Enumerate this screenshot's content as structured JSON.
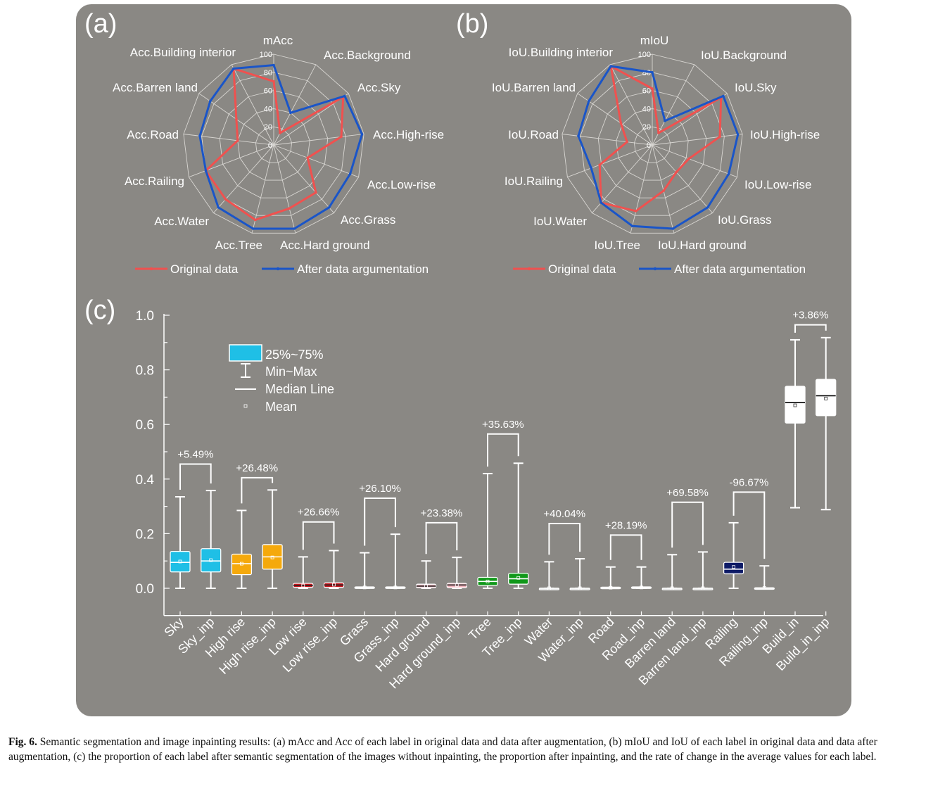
{
  "panel_labels": [
    "(a)",
    "(b)",
    "(c)"
  ],
  "chart_data": [
    {
      "type": "radar",
      "panel": "(a)",
      "title": "mAcc",
      "axes": [
        "mAcc",
        "Acc.Background",
        "Acc.Sky",
        "Acc.High-rise",
        "Acc.Low-rise",
        "Acc.Grass",
        "Acc.Hard ground",
        "Acc.Tree",
        "Acc.Water",
        "Acc.Railing",
        "Acc.Road",
        "Acc.Barren land",
        "Acc.Building interior"
      ],
      "radial_ticks": [
        "0",
        "20",
        "40",
        "60",
        "80",
        "100"
      ],
      "rmax": 100,
      "series": [
        {
          "name": "Original data",
          "color": "#f0514f",
          "values": [
            70,
            15,
            93,
            75,
            40,
            70,
            72,
            85,
            80,
            80,
            40,
            50,
            95
          ]
        },
        {
          "name": "After data argumentation",
          "color": "#1a55c8",
          "values": [
            88,
            40,
            95,
            98,
            90,
            92,
            95,
            95,
            92,
            80,
            82,
            85,
            95
          ]
        }
      ]
    },
    {
      "type": "radar",
      "panel": "(b)",
      "title": "mIoU",
      "axes": [
        "mIoU",
        "IoU.Background",
        "IoU.Sky",
        "IoU.High-rise",
        "IoU.Low-rise",
        "IoU.Grass",
        "IoU.Hard ground",
        "IoU.Tree",
        "IoU.Water",
        "IoU.Railing",
        "IoU.Road",
        "IoU.Barren land",
        "IoU.Building interior"
      ],
      "radial_ticks": [
        "0",
        "20",
        "40",
        "60",
        "80",
        "100"
      ],
      "rmax": 100,
      "series": [
        {
          "name": "Original data",
          "color": "#f0514f",
          "values": [
            62,
            15,
            92,
            75,
            43,
            40,
            52,
            75,
            85,
            62,
            28,
            42,
            98
          ]
        },
        {
          "name": "After data argumentation",
          "color": "#1a55c8",
          "values": [
            80,
            30,
            95,
            95,
            90,
            92,
            95,
            92,
            85,
            72,
            82,
            85,
            98
          ]
        }
      ]
    },
    {
      "type": "box",
      "panel": "(c)",
      "ylim": [
        -0.1,
        1.0
      ],
      "yticks": [
        "0.0",
        "0.2",
        "0.4",
        "0.6",
        "0.8",
        "1.0"
      ],
      "legend": {
        "box": "25%~75%",
        "whisker": "Min~Max",
        "median": "Median Line",
        "mean": "Mean"
      },
      "categories": [
        "Sky",
        "Sky_inp",
        "High rise",
        "High rise_inp",
        "Low rise",
        "Low rise_inp",
        "Grass",
        "Grass_inp",
        "Hard ground",
        "Hard ground_inp",
        "Tree",
        "Tree_inp",
        "Water",
        "Water_inp",
        "Road",
        "Road_inp",
        "Barren land",
        "Barren land_inp",
        "Railing",
        "Railing_inp",
        "Build_in",
        "Build_in_inp"
      ],
      "boxes": [
        {
          "min": 0.0,
          "q1": 0.06,
          "median": 0.095,
          "q3": 0.135,
          "max": 0.335,
          "mean": 0.098,
          "color": "#1fbfe6"
        },
        {
          "min": 0.0,
          "q1": 0.06,
          "median": 0.1,
          "q3": 0.145,
          "max": 0.358,
          "mean": 0.103,
          "color": "#1fbfe6"
        },
        {
          "min": 0.0,
          "q1": 0.05,
          "median": 0.09,
          "q3": 0.125,
          "max": 0.285,
          "mean": 0.09,
          "color": "#f5a90c"
        },
        {
          "min": 0.0,
          "q1": 0.07,
          "median": 0.115,
          "q3": 0.16,
          "max": 0.36,
          "mean": 0.113,
          "color": "#f5a90c"
        },
        {
          "min": 0.0,
          "q1": 0.003,
          "median": 0.01,
          "q3": 0.018,
          "max": 0.115,
          "mean": 0.01,
          "color": "#c8141c"
        },
        {
          "min": 0.0,
          "q1": 0.003,
          "median": 0.012,
          "q3": 0.02,
          "max": 0.138,
          "mean": 0.013,
          "color": "#c8141c"
        },
        {
          "min": 0.0,
          "q1": 0.0,
          "median": 0.002,
          "q3": 0.005,
          "max": 0.13,
          "mean": 0.003,
          "color": "#cccccc"
        },
        {
          "min": 0.0,
          "q1": 0.0,
          "median": 0.002,
          "q3": 0.005,
          "max": 0.198,
          "mean": 0.003,
          "color": "#cccccc"
        },
        {
          "min": 0.0,
          "q1": 0.002,
          "median": 0.008,
          "q3": 0.015,
          "max": 0.1,
          "mean": 0.008,
          "color": "#f7b6bf"
        },
        {
          "min": 0.0,
          "q1": 0.002,
          "median": 0.012,
          "q3": 0.018,
          "max": 0.113,
          "mean": 0.012,
          "color": "#f7b6bf"
        },
        {
          "min": 0.0,
          "q1": 0.01,
          "median": 0.025,
          "q3": 0.04,
          "max": 0.42,
          "mean": 0.025,
          "color": "#11981a"
        },
        {
          "min": 0.0,
          "q1": 0.015,
          "median": 0.035,
          "q3": 0.055,
          "max": 0.458,
          "mean": 0.038,
          "color": "#11981a"
        },
        {
          "min": 0.0,
          "q1": 0.0,
          "median": 0.0,
          "q3": 0.0,
          "max": 0.097,
          "mean": 0.0,
          "color": "#cccccc"
        },
        {
          "min": 0.0,
          "q1": 0.0,
          "median": 0.0,
          "q3": 0.0,
          "max": 0.108,
          "mean": 0.0,
          "color": "#cccccc"
        },
        {
          "min": 0.0,
          "q1": 0.0,
          "median": 0.002,
          "q3": 0.004,
          "max": 0.078,
          "mean": 0.002,
          "color": "#cccccc"
        },
        {
          "min": 0.0,
          "q1": 0.0,
          "median": 0.002,
          "q3": 0.005,
          "max": 0.078,
          "mean": 0.003,
          "color": "#cccccc"
        },
        {
          "min": 0.0,
          "q1": 0.0,
          "median": 0.0,
          "q3": 0.0,
          "max": 0.123,
          "mean": 0.0,
          "color": "#cccccc"
        },
        {
          "min": 0.0,
          "q1": 0.0,
          "median": 0.0,
          "q3": 0.0,
          "max": 0.133,
          "mean": 0.0,
          "color": "#cccccc"
        },
        {
          "min": 0.0,
          "q1": 0.053,
          "median": 0.07,
          "q3": 0.095,
          "max": 0.24,
          "mean": 0.078,
          "color": "#0d1a66"
        },
        {
          "min": 0.0,
          "q1": 0.0,
          "median": 0.0,
          "q3": 0.002,
          "max": 0.082,
          "mean": 0.001,
          "color": "#cccccc"
        },
        {
          "min": 0.295,
          "q1": 0.605,
          "median": 0.68,
          "q3": 0.74,
          "max": 0.91,
          "mean": 0.67,
          "color": "#ffffff"
        },
        {
          "min": 0.288,
          "q1": 0.632,
          "median": 0.705,
          "q3": 0.765,
          "max": 0.918,
          "mean": 0.695,
          "color": "#ffffff"
        }
      ],
      "annotations": [
        {
          "pair": [
            0,
            1
          ],
          "text": "+5.49%",
          "y": 0.455
        },
        {
          "pair": [
            2,
            3
          ],
          "text": "+26.48%",
          "y": 0.405
        },
        {
          "pair": [
            4,
            5
          ],
          "text": "+26.66%",
          "y": 0.243
        },
        {
          "pair": [
            6,
            7
          ],
          "text": "+26.10%",
          "y": 0.33
        },
        {
          "pair": [
            8,
            9
          ],
          "text": "+23.38%",
          "y": 0.24
        },
        {
          "pair": [
            10,
            11
          ],
          "text": "+35.63%",
          "y": 0.565
        },
        {
          "pair": [
            12,
            13
          ],
          "text": "+40.04%",
          "y": 0.237
        },
        {
          "pair": [
            14,
            15
          ],
          "text": "+28.19%",
          "y": 0.195
        },
        {
          "pair": [
            16,
            17
          ],
          "text": "+69.58%",
          "y": 0.315
        },
        {
          "pair": [
            18,
            19
          ],
          "text": "-96.67%",
          "y": 0.352
        },
        {
          "pair": [
            20,
            21
          ],
          "text": "+3.86%",
          "y": 0.965
        }
      ]
    }
  ],
  "caption": {
    "label": "Fig. 6.",
    "text": " Semantic segmentation and image inpainting results: (a) mAcc and Acc of each label in original data and data after augmentation, (b) mIoU and IoU of each label in original data and data after augmentation, (c) the proportion of each label after semantic segmentation of the images without inpainting, the proportion after inpainting, and the rate of change in the average values for each label."
  }
}
